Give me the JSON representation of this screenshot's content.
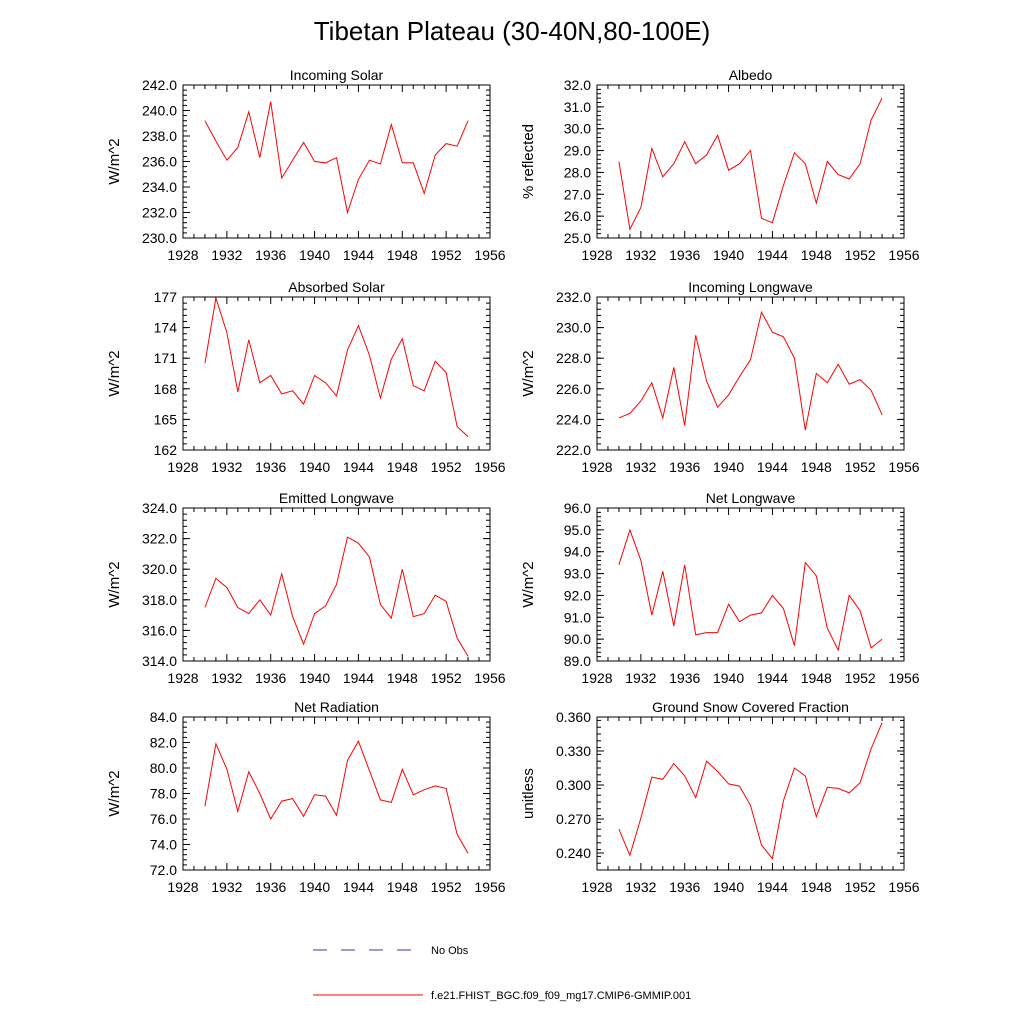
{
  "figure_title": "Tibetan Plateau (30-40N,80-100E)",
  "colors": {
    "model": "#ff0000",
    "obs": "#3a3aa8",
    "axis": "#000000"
  },
  "legend": {
    "obs_label": "No Obs",
    "model_label": "f.e21.FHIST_BGC.f09_f09_mg17.CMIP6-GMMIP.001"
  },
  "chart_data": [
    {
      "type": "line",
      "title": "Incoming Solar",
      "xlabel": "",
      "ylabel": "W/m^2",
      "xlim": [
        1928,
        1956
      ],
      "ylim": [
        230,
        242
      ],
      "xticks": [
        "1928",
        "1932",
        "1936",
        "1940",
        "1944",
        "1948",
        "1952",
        "1956"
      ],
      "yticks": [
        "230.0",
        "232.0",
        "234.0",
        "236.0",
        "238.0",
        "240.0",
        "242.0"
      ],
      "x": [
        1930,
        1931,
        1932,
        1933,
        1934,
        1935,
        1936,
        1937,
        1938,
        1939,
        1940,
        1941,
        1942,
        1943,
        1944,
        1945,
        1946,
        1947,
        1948,
        1949,
        1950,
        1951,
        1952,
        1953,
        1954
      ],
      "series": [
        {
          "name": "f.e21.FHIST_BGC.f09_f09_mg17.CMIP6-GMMIP.001",
          "values": [
            239.2,
            237.6,
            236.1,
            237.1,
            239.9,
            236.3,
            240.7,
            234.7,
            236.1,
            237.5,
            236.0,
            235.9,
            236.3,
            232.0,
            234.6,
            236.1,
            235.8,
            238.9,
            235.9,
            235.9,
            233.5,
            236.5,
            237.4,
            237.2,
            239.2
          ]
        }
      ]
    },
    {
      "type": "line",
      "title": "Albedo",
      "xlabel": "",
      "ylabel": "% reflected",
      "xlim": [
        1928,
        1956
      ],
      "ylim": [
        25,
        32
      ],
      "xticks": [
        "1928",
        "1932",
        "1936",
        "1940",
        "1944",
        "1948",
        "1952",
        "1956"
      ],
      "yticks": [
        "25.0",
        "26.0",
        "27.0",
        "28.0",
        "29.0",
        "30.0",
        "31.0",
        "32.0"
      ],
      "x": [
        1930,
        1931,
        1932,
        1933,
        1934,
        1935,
        1936,
        1937,
        1938,
        1939,
        1940,
        1941,
        1942,
        1943,
        1944,
        1945,
        1946,
        1947,
        1948,
        1949,
        1950,
        1951,
        1952,
        1953,
        1954
      ],
      "series": [
        {
          "name": "f.e21.FHIST_BGC.f09_f09_mg17.CMIP6-GMMIP.001",
          "values": [
            28.5,
            25.4,
            26.4,
            29.1,
            27.8,
            28.4,
            29.4,
            28.4,
            28.8,
            29.7,
            28.1,
            28.4,
            29.0,
            25.9,
            25.7,
            27.4,
            28.9,
            28.4,
            26.6,
            28.5,
            27.9,
            27.7,
            28.4,
            30.4,
            31.4
          ]
        }
      ]
    },
    {
      "type": "line",
      "title": "Absorbed Solar",
      "xlabel": "",
      "ylabel": "W/m^2",
      "xlim": [
        1928,
        1956
      ],
      "ylim": [
        162,
        177
      ],
      "xticks": [
        "1928",
        "1932",
        "1936",
        "1940",
        "1944",
        "1948",
        "1952",
        "1956"
      ],
      "yticks": [
        "162",
        "165",
        "168",
        "171",
        "174",
        "177"
      ],
      "x": [
        1930,
        1931,
        1932,
        1933,
        1934,
        1935,
        1936,
        1937,
        1938,
        1939,
        1940,
        1941,
        1942,
        1943,
        1944,
        1945,
        1946,
        1947,
        1948,
        1949,
        1950,
        1951,
        1952,
        1953,
        1954
      ],
      "series": [
        {
          "name": "f.e21.FHIST_BGC.f09_f09_mg17.CMIP6-GMMIP.001",
          "values": [
            170.5,
            176.9,
            173.5,
            167.7,
            172.8,
            168.6,
            169.3,
            167.5,
            167.8,
            166.5,
            169.3,
            168.6,
            167.3,
            171.8,
            174.2,
            171.3,
            167.1,
            170.9,
            172.9,
            168.3,
            167.8,
            170.7,
            169.6,
            164.3,
            163.3
          ]
        }
      ]
    },
    {
      "type": "line",
      "title": "Incoming Longwave",
      "xlabel": "",
      "ylabel": "W/m^2",
      "xlim": [
        1928,
        1956
      ],
      "ylim": [
        222,
        232
      ],
      "xticks": [
        "1928",
        "1932",
        "1936",
        "1940",
        "1944",
        "1948",
        "1952",
        "1956"
      ],
      "yticks": [
        "222.0",
        "224.0",
        "226.0",
        "228.0",
        "230.0",
        "232.0"
      ],
      "x": [
        1930,
        1931,
        1932,
        1933,
        1934,
        1935,
        1936,
        1937,
        1938,
        1939,
        1940,
        1941,
        1942,
        1943,
        1944,
        1945,
        1946,
        1947,
        1948,
        1949,
        1950,
        1951,
        1952,
        1953,
        1954
      ],
      "series": [
        {
          "name": "f.e21.FHIST_BGC.f09_f09_mg17.CMIP6-GMMIP.001",
          "values": [
            224.1,
            224.4,
            225.2,
            226.4,
            224.1,
            227.4,
            223.6,
            229.5,
            226.5,
            224.8,
            225.6,
            226.8,
            227.9,
            231.0,
            229.7,
            229.4,
            228.0,
            223.3,
            227.0,
            226.4,
            227.6,
            226.3,
            226.6,
            225.9,
            224.3
          ]
        }
      ]
    },
    {
      "type": "line",
      "title": "Emitted Longwave",
      "xlabel": "",
      "ylabel": "W/m^2",
      "xlim": [
        1928,
        1956
      ],
      "ylim": [
        314,
        324
      ],
      "xticks": [
        "1928",
        "1932",
        "1936",
        "1940",
        "1944",
        "1948",
        "1952",
        "1956"
      ],
      "yticks": [
        "314.0",
        "316.0",
        "318.0",
        "320.0",
        "322.0",
        "324.0"
      ],
      "x": [
        1930,
        1931,
        1932,
        1933,
        1934,
        1935,
        1936,
        1937,
        1938,
        1939,
        1940,
        1941,
        1942,
        1943,
        1944,
        1945,
        1946,
        1947,
        1948,
        1949,
        1950,
        1951,
        1952,
        1953,
        1954
      ],
      "series": [
        {
          "name": "f.e21.FHIST_BGC.f09_f09_mg17.CMIP6-GMMIP.001",
          "values": [
            317.5,
            319.4,
            318.8,
            317.5,
            317.1,
            318.0,
            317.0,
            319.7,
            316.9,
            315.1,
            317.1,
            317.6,
            319.0,
            322.1,
            321.7,
            320.8,
            317.7,
            316.8,
            320.0,
            316.9,
            317.1,
            318.3,
            317.9,
            315.5,
            314.3
          ]
        }
      ]
    },
    {
      "type": "line",
      "title": "Net Longwave",
      "xlabel": "",
      "ylabel": "W/m^2",
      "xlim": [
        1928,
        1956
      ],
      "ylim": [
        89,
        96
      ],
      "xticks": [
        "1928",
        "1932",
        "1936",
        "1940",
        "1944",
        "1948",
        "1952",
        "1956"
      ],
      "yticks": [
        "89.0",
        "90.0",
        "91.0",
        "92.0",
        "93.0",
        "94.0",
        "95.0",
        "96.0"
      ],
      "x": [
        1930,
        1931,
        1932,
        1933,
        1934,
        1935,
        1936,
        1937,
        1938,
        1939,
        1940,
        1941,
        1942,
        1943,
        1944,
        1945,
        1946,
        1947,
        1948,
        1949,
        1950,
        1951,
        1952,
        1953,
        1954
      ],
      "series": [
        {
          "name": "f.e21.FHIST_BGC.f09_f09_mg17.CMIP6-GMMIP.001",
          "values": [
            93.4,
            95.0,
            93.6,
            91.1,
            93.1,
            90.6,
            93.4,
            90.2,
            90.3,
            90.3,
            91.6,
            90.8,
            91.1,
            91.2,
            92.0,
            91.4,
            89.7,
            93.5,
            92.9,
            90.5,
            89.5,
            92.0,
            91.3,
            89.6,
            90.0
          ]
        }
      ]
    },
    {
      "type": "line",
      "title": "Net Radiation",
      "xlabel": "",
      "ylabel": "W/m^2",
      "xlim": [
        1928,
        1956
      ],
      "ylim": [
        72,
        84
      ],
      "xticks": [
        "1928",
        "1932",
        "1936",
        "1940",
        "1944",
        "1948",
        "1952",
        "1956"
      ],
      "yticks": [
        "72.0",
        "74.0",
        "76.0",
        "78.0",
        "80.0",
        "82.0",
        "84.0"
      ],
      "x": [
        1930,
        1931,
        1932,
        1933,
        1934,
        1935,
        1936,
        1937,
        1938,
        1939,
        1940,
        1941,
        1942,
        1943,
        1944,
        1945,
        1946,
        1947,
        1948,
        1949,
        1950,
        1951,
        1952,
        1953,
        1954
      ],
      "series": [
        {
          "name": "f.e21.FHIST_BGC.f09_f09_mg17.CMIP6-GMMIP.001",
          "values": [
            77.0,
            81.9,
            79.9,
            76.6,
            79.7,
            78.0,
            76.0,
            77.4,
            77.6,
            76.2,
            77.9,
            77.8,
            76.3,
            80.6,
            82.1,
            79.8,
            77.5,
            77.3,
            79.9,
            77.9,
            78.3,
            78.6,
            78.4,
            74.8,
            73.3
          ]
        }
      ]
    },
    {
      "type": "line",
      "title": "Ground Snow Covered Fraction",
      "xlabel": "",
      "ylabel": "unitless",
      "xlim": [
        1928,
        1956
      ],
      "ylim": [
        0.225,
        0.36
      ],
      "xticks": [
        "1928",
        "1932",
        "1936",
        "1940",
        "1944",
        "1948",
        "1952",
        "1956"
      ],
      "yticks": [
        "0.240",
        "0.270",
        "0.300",
        "0.330",
        "0.360"
      ],
      "x": [
        1930,
        1931,
        1932,
        1933,
        1934,
        1935,
        1936,
        1937,
        1938,
        1939,
        1940,
        1941,
        1942,
        1943,
        1944,
        1945,
        1946,
        1947,
        1948,
        1949,
        1950,
        1951,
        1952,
        1953,
        1954
      ],
      "series": [
        {
          "name": "f.e21.FHIST_BGC.f09_f09_mg17.CMIP6-GMMIP.001",
          "values": [
            0.261,
            0.238,
            0.271,
            0.307,
            0.305,
            0.319,
            0.308,
            0.289,
            0.321,
            0.312,
            0.301,
            0.299,
            0.282,
            0.247,
            0.235,
            0.286,
            0.315,
            0.308,
            0.272,
            0.298,
            0.297,
            0.293,
            0.302,
            0.332,
            0.355
          ]
        }
      ]
    }
  ]
}
